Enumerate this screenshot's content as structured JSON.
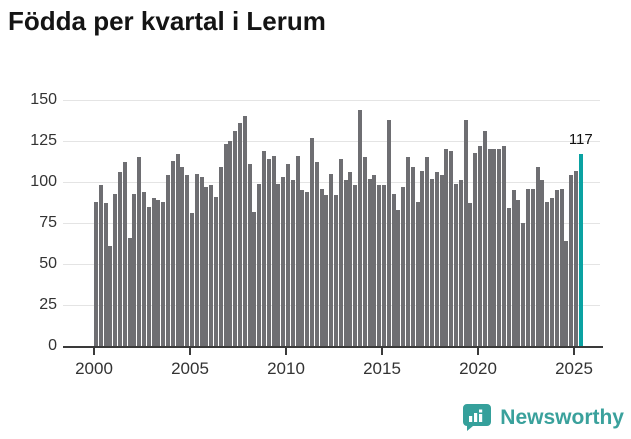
{
  "title": "Födda per kvartal i Lerum",
  "annotation": {
    "label": "117"
  },
  "logo": {
    "brand": "Newsworthy"
  },
  "colors": {
    "bar": "#6e6e72",
    "highlight": "#0aa2a2",
    "grid": "#e4e4e4",
    "axis": "#3a3a3a",
    "title": "#141414",
    "tick_text": "#333333",
    "logo_teal": "#3aa19c"
  },
  "chart_data": {
    "type": "bar",
    "title": "Födda per kvartal i Lerum",
    "x_unit": "quarter",
    "start_year": 2000,
    "values": [
      88,
      98,
      87,
      61,
      93,
      106,
      112,
      66,
      93,
      115,
      94,
      85,
      90,
      89,
      88,
      104,
      113,
      117,
      109,
      104,
      81,
      105,
      103,
      97,
      98,
      91,
      109,
      123,
      125,
      131,
      136,
      140,
      111,
      82,
      99,
      119,
      114,
      116,
      99,
      103,
      111,
      101,
      116,
      95,
      94,
      127,
      112,
      96,
      92,
      105,
      92,
      114,
      101,
      106,
      98,
      144,
      115,
      102,
      104,
      98,
      98,
      138,
      93,
      83,
      97,
      115,
      109,
      88,
      107,
      115,
      102,
      106,
      104,
      120,
      119,
      99,
      101,
      138,
      87,
      118,
      122,
      131,
      120,
      120,
      120,
      122,
      84,
      95,
      89,
      75,
      96,
      96,
      109,
      101,
      88,
      90,
      95,
      96,
      64,
      104,
      107,
      117
    ],
    "highlight_last_bar": true,
    "last_bar_value_label": "117",
    "y_ticks": [
      0,
      25,
      50,
      75,
      100,
      125,
      150
    ],
    "ylim": [
      0,
      150
    ],
    "x_tick_years": [
      2000,
      2005,
      2010,
      2015,
      2020,
      2025
    ],
    "grid": true,
    "legend": "none"
  }
}
